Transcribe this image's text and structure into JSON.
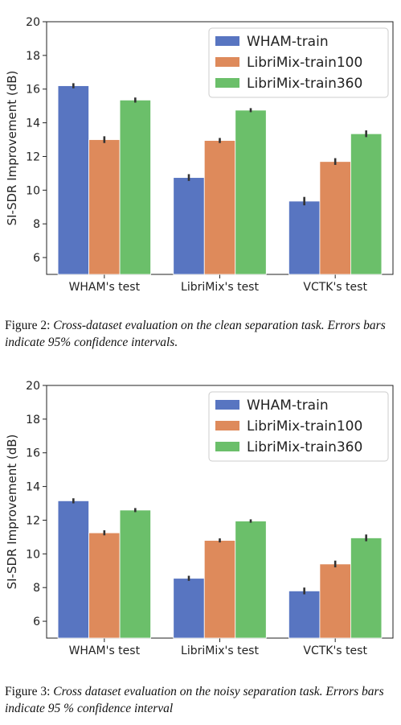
{
  "figures": [
    {
      "caption_label": "Figure 2:",
      "caption_text": "Cross-dataset evaluation on the clean separation task. Errors bars indicate 95% confidence intervals.",
      "chart_data": {
        "type": "bar",
        "ylabel": "SI-SDR Improvement (dB)",
        "xlabel": "",
        "ylim": [
          5,
          20
        ],
        "yticks": [
          6,
          8,
          10,
          12,
          14,
          16,
          18,
          20
        ],
        "categories": [
          "WHAM's test",
          "LibriMix's test",
          "VCTK's test"
        ],
        "legend_position": "top-right",
        "grid": false,
        "series": [
          {
            "name": "WHAM-train",
            "color": "#5875c1",
            "values": [
              16.2,
              10.75,
              9.35
            ],
            "errors": [
              0.15,
              0.2,
              0.25
            ]
          },
          {
            "name": "LibriMix-train100",
            "color": "#de8a5b",
            "values": [
              13.0,
              12.95,
              11.7
            ],
            "errors": [
              0.2,
              0.15,
              0.2
            ]
          },
          {
            "name": "LibriMix-train360",
            "color": "#6bbf6a",
            "values": [
              15.35,
              14.75,
              13.35
            ],
            "errors": [
              0.15,
              0.12,
              0.2
            ]
          }
        ]
      }
    },
    {
      "caption_label": "Figure 3:",
      "caption_text": "Cross dataset evaluation on the noisy separation task. Errors bars indicate 95 % confidence interval",
      "chart_data": {
        "type": "bar",
        "ylabel": "SI-SDR Improvement (dB)",
        "xlabel": "",
        "ylim": [
          5,
          20
        ],
        "yticks": [
          6,
          8,
          10,
          12,
          14,
          16,
          18,
          20
        ],
        "categories": [
          "WHAM's test",
          "LibriMix's test",
          "VCTK's test"
        ],
        "legend_position": "top-right",
        "grid": false,
        "series": [
          {
            "name": "WHAM-train",
            "color": "#5875c1",
            "values": [
              13.15,
              8.55,
              7.8
            ],
            "errors": [
              0.15,
              0.15,
              0.2
            ]
          },
          {
            "name": "LibriMix-train100",
            "color": "#de8a5b",
            "values": [
              11.25,
              10.8,
              9.4
            ],
            "errors": [
              0.15,
              0.12,
              0.2
            ]
          },
          {
            "name": "LibriMix-train360",
            "color": "#6bbf6a",
            "values": [
              12.6,
              11.95,
              10.95
            ],
            "errors": [
              0.12,
              0.1,
              0.2
            ]
          }
        ]
      }
    }
  ]
}
